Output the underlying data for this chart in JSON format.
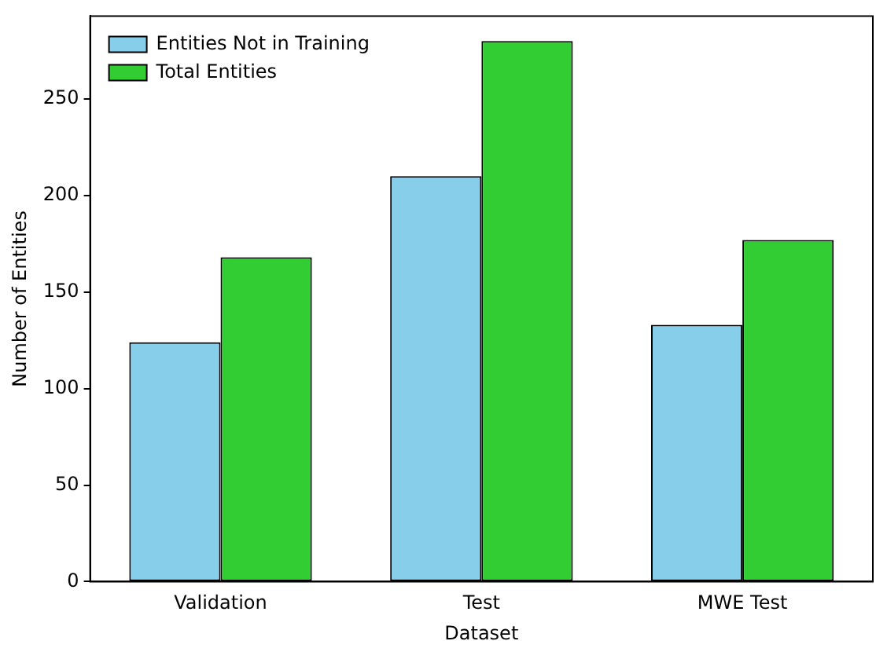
{
  "chart_data": {
    "type": "bar",
    "xlabel": "Dataset",
    "ylabel": "Number of Entities",
    "categories": [
      "Validation",
      "Test",
      "MWE Test"
    ],
    "series": [
      {
        "name": "Entities Not in Training",
        "color": "#87ceeb",
        "values": [
          124,
          210,
          133
        ]
      },
      {
        "name": "Total Entities",
        "color": "#32cd32",
        "values": [
          168,
          280,
          177
        ]
      }
    ],
    "ylim": [
      0,
      293
    ],
    "yticks": [
      0,
      50,
      100,
      150,
      200,
      250
    ],
    "grid": false,
    "legend": "top left"
  }
}
